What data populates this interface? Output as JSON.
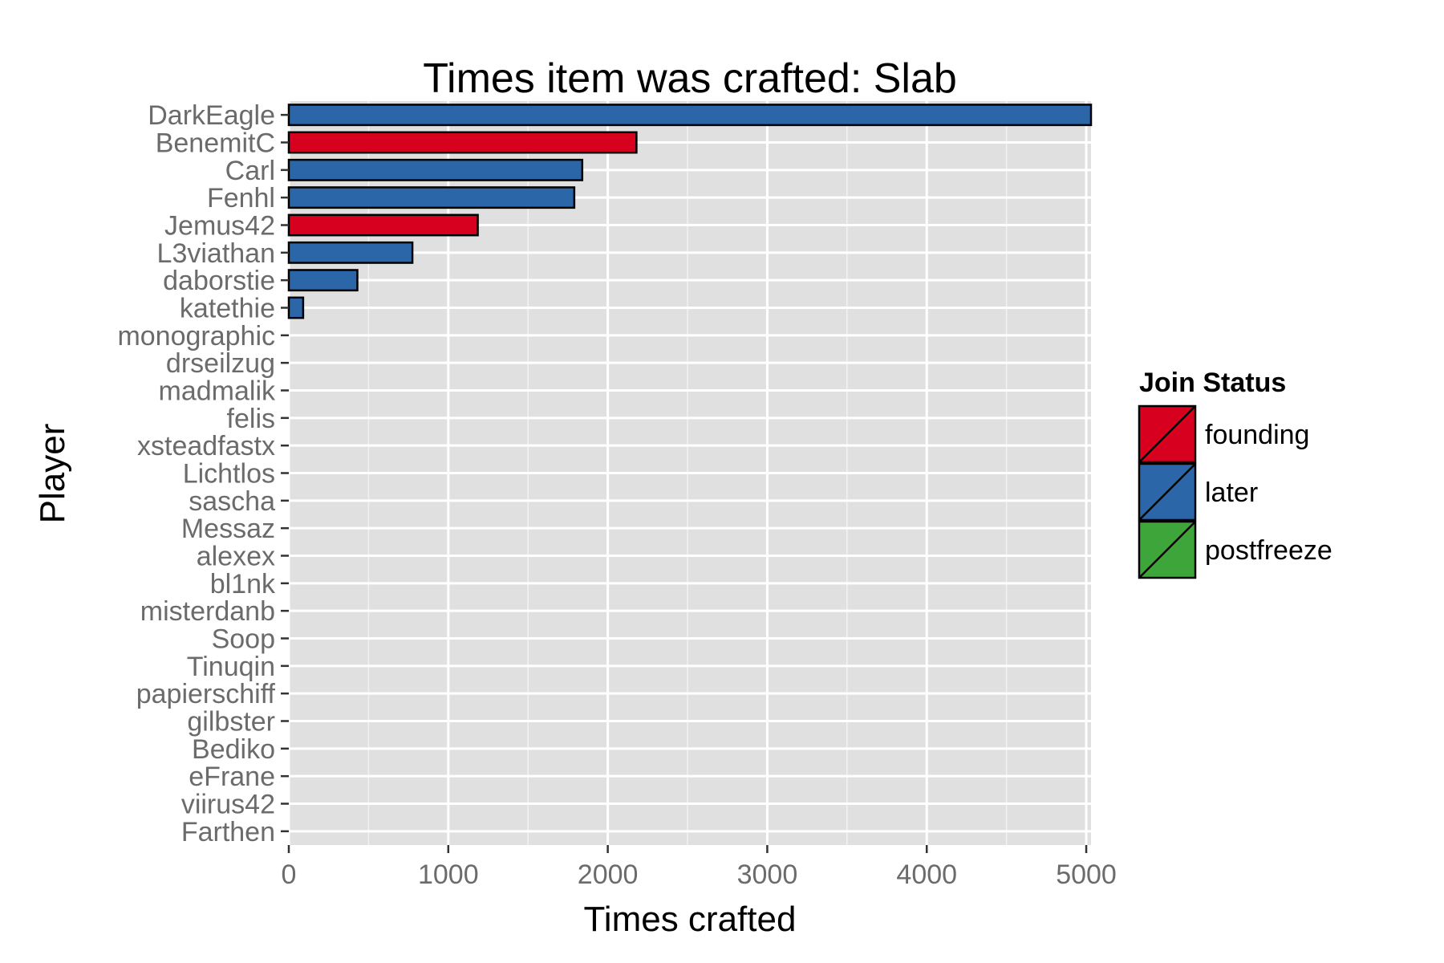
{
  "chart_data": {
    "type": "bar",
    "orientation": "horizontal",
    "title": "Times item was crafted: Slab",
    "xlabel": "Times crafted",
    "ylabel": "Player",
    "xlim": [
      0,
      5030
    ],
    "xticks": [
      0,
      1000,
      2000,
      3000,
      4000,
      5000
    ],
    "xtick_labels": [
      "0",
      "1000",
      "2000",
      "3000",
      "4000",
      "5000"
    ],
    "grid": true,
    "legend": {
      "title": "Join Status",
      "placement": "right",
      "entries": [
        {
          "label": "founding",
          "color": "#d7001e"
        },
        {
          "label": "later",
          "color": "#2b66a8"
        },
        {
          "label": "postfreeze",
          "color": "#3da53a"
        }
      ]
    },
    "categories": [
      "DarkEagle",
      "BenemitC",
      "Carl",
      "Fenhl",
      "Jemus42",
      "L3viathan",
      "daborstie",
      "katethie",
      "monographic",
      "drseilzug",
      "madmalik",
      "felis",
      "xsteadfastx",
      "Lichtlos",
      "sascha",
      "Messaz",
      "alexex",
      "bl1nk",
      "misterdanb",
      "Soop",
      "Tinuqin",
      "papierschiff",
      "gilbster",
      "Bediko",
      "eFrane",
      "viirus42",
      "Farthen"
    ],
    "values": [
      5030,
      2180,
      1840,
      1790,
      1185,
      775,
      430,
      90,
      0,
      0,
      0,
      0,
      0,
      0,
      0,
      0,
      0,
      0,
      0,
      0,
      0,
      0,
      0,
      0,
      0,
      0,
      0
    ],
    "status": [
      "later",
      "founding",
      "later",
      "later",
      "founding",
      "later",
      "later",
      "later",
      "later",
      "later",
      "later",
      "later",
      "later",
      "later",
      "later",
      "later",
      "later",
      "later",
      "later",
      "later",
      "later",
      "later",
      "later",
      "later",
      "later",
      "later",
      "later"
    ]
  }
}
